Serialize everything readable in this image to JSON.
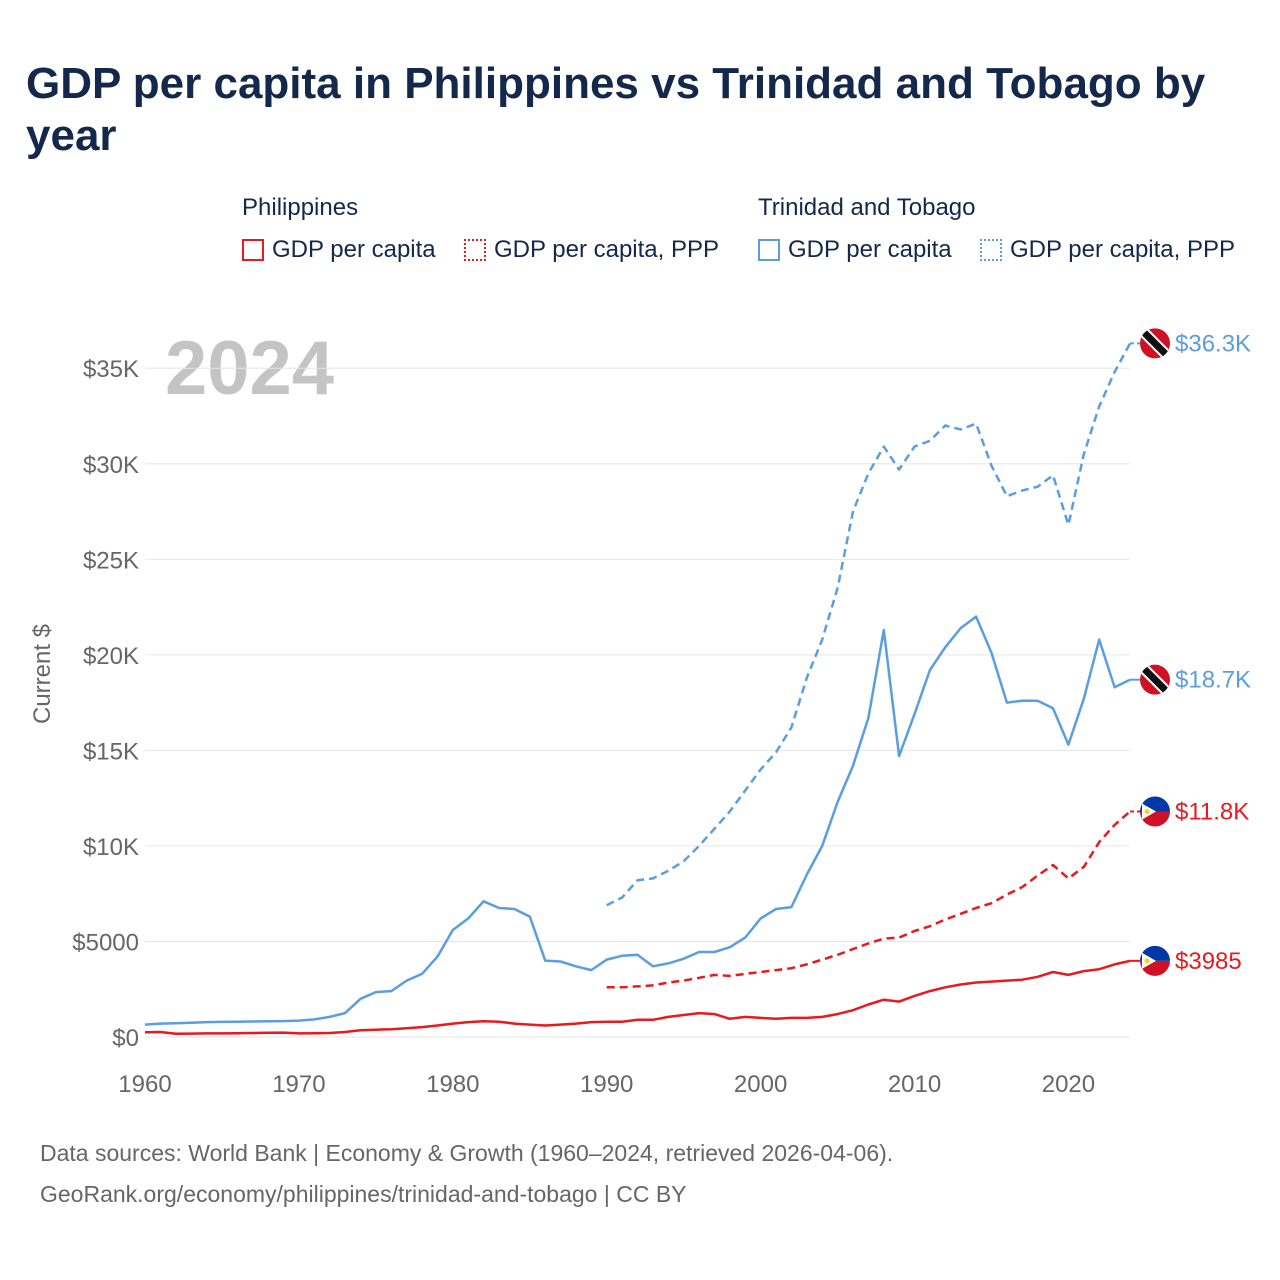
{
  "title": "GDP per capita in Philippines vs Trinidad and Tobago by year",
  "legend": {
    "groups": [
      {
        "name": "Philippines",
        "color": "#e8191f",
        "items": [
          "GDP per capita",
          "GDP per capita, PPP"
        ]
      },
      {
        "name": "Trinidad and Tobago",
        "color": "#5a9ee0",
        "items": [
          "GDP per capita",
          "GDP per capita, PPP"
        ]
      }
    ]
  },
  "year_watermark": "2024",
  "footer": {
    "line1": "Data sources: World Bank | Economy & Growth (1960–2024, retrieved 2026-04-06).",
    "line2": "GeoRank.org/economy/philippines/trinidad-and-tobago | CC BY"
  },
  "colors": {
    "philippines": "#e8191f",
    "trinidad": "#5a9ee0",
    "grid": "#e6e6e6",
    "axis_text": "#666666"
  },
  "chart_data": {
    "type": "line",
    "title": "GDP per capita in Philippines vs Trinidad and Tobago by year",
    "xlabel": "",
    "ylabel": "Current $",
    "xlim": [
      1960,
      2024
    ],
    "ylim": [
      0,
      37000
    ],
    "x_ticks": [
      1960,
      1970,
      1980,
      1990,
      2000,
      2010,
      2020
    ],
    "y_ticks": [
      0,
      5000,
      10000,
      15000,
      20000,
      25000,
      30000,
      35000
    ],
    "y_tick_labels": [
      "$0",
      "$5000",
      "$10K",
      "$15K",
      "$20K",
      "$25K",
      "$30K",
      "$35K"
    ],
    "series": [
      {
        "name": "Trinidad and Tobago GDP per capita, PPP",
        "country": "trinidad",
        "dash": true,
        "end_label": "$36.3K",
        "x": [
          1990,
          1991,
          1992,
          1993,
          1994,
          1995,
          1996,
          1997,
          1998,
          1999,
          2000,
          2001,
          2002,
          2003,
          2004,
          2005,
          2006,
          2007,
          2008,
          2009,
          2010,
          2011,
          2012,
          2013,
          2014,
          2015,
          2016,
          2017,
          2018,
          2019,
          2020,
          2021,
          2022,
          2023,
          2024
        ],
        "values": [
          6900,
          7300,
          8200,
          8300,
          8700,
          9200,
          10000,
          10900,
          11800,
          12900,
          14000,
          14900,
          16200,
          18800,
          20800,
          23500,
          27500,
          29500,
          30900,
          29700,
          30900,
          31200,
          32000,
          31800,
          32100,
          29900,
          28300,
          28600,
          28800,
          29400,
          26800,
          30500,
          33000,
          34800,
          36300
        ]
      },
      {
        "name": "Trinidad and Tobago GDP per capita",
        "country": "trinidad",
        "dash": false,
        "end_label": "$18.7K",
        "x": [
          1960,
          1961,
          1962,
          1963,
          1964,
          1965,
          1966,
          1967,
          1968,
          1969,
          1970,
          1971,
          1972,
          1973,
          1974,
          1975,
          1976,
          1977,
          1978,
          1979,
          1980,
          1981,
          1982,
          1983,
          1984,
          1985,
          1986,
          1987,
          1988,
          1989,
          1990,
          1991,
          1992,
          1993,
          1994,
          1995,
          1996,
          1997,
          1998,
          1999,
          2000,
          2001,
          2002,
          2003,
          2004,
          2005,
          2006,
          2007,
          2008,
          2009,
          2010,
          2011,
          2012,
          2013,
          2014,
          2015,
          2016,
          2017,
          2018,
          2019,
          2020,
          2021,
          2022,
          2023,
          2024
        ],
        "values": [
          650,
          700,
          720,
          750,
          780,
          790,
          800,
          810,
          820,
          830,
          860,
          920,
          1050,
          1250,
          2000,
          2350,
          2400,
          2950,
          3300,
          4200,
          5600,
          6200,
          7100,
          6750,
          6700,
          6300,
          4000,
          3950,
          3700,
          3500,
          4050,
          4250,
          4300,
          3700,
          3850,
          4100,
          4450,
          4450,
          4700,
          5200,
          6200,
          6700,
          6800,
          8500,
          10000,
          12300,
          14200,
          16700,
          21300,
          14700,
          16900,
          19200,
          20400,
          21400,
          22000,
          20100,
          17500,
          17600,
          17600,
          17200,
          15300,
          17700,
          20800,
          18300,
          18700
        ]
      },
      {
        "name": "Philippines GDP per capita, PPP",
        "country": "philippines",
        "dash": true,
        "end_label": "$11.8K",
        "x": [
          1990,
          1991,
          1992,
          1993,
          1994,
          1995,
          1996,
          1997,
          1998,
          1999,
          2000,
          2001,
          2002,
          2003,
          2004,
          2005,
          2006,
          2007,
          2008,
          2009,
          2010,
          2011,
          2012,
          2013,
          2014,
          2015,
          2016,
          2017,
          2018,
          2019,
          2020,
          2021,
          2022,
          2023,
          2024
        ],
        "values": [
          2600,
          2600,
          2650,
          2700,
          2850,
          2950,
          3100,
          3250,
          3200,
          3300,
          3400,
          3500,
          3600,
          3800,
          4050,
          4300,
          4600,
          4900,
          5150,
          5200,
          5550,
          5800,
          6150,
          6450,
          6750,
          7000,
          7450,
          7850,
          8450,
          9000,
          8300,
          8900,
          10200,
          11100,
          11800
        ]
      },
      {
        "name": "Philippines GDP per capita",
        "country": "philippines",
        "dash": false,
        "end_label": "$3985",
        "x": [
          1960,
          1961,
          1962,
          1963,
          1964,
          1965,
          1966,
          1967,
          1968,
          1969,
          1970,
          1971,
          1972,
          1973,
          1974,
          1975,
          1976,
          1977,
          1978,
          1979,
          1980,
          1981,
          1982,
          1983,
          1984,
          1985,
          1986,
          1987,
          1988,
          1989,
          1990,
          1991,
          1992,
          1993,
          1994,
          1995,
          1996,
          1997,
          1998,
          1999,
          2000,
          2001,
          2002,
          2003,
          2004,
          2005,
          2006,
          2007,
          2008,
          2009,
          2010,
          2011,
          2012,
          2013,
          2014,
          2015,
          2016,
          2017,
          2018,
          2019,
          2020,
          2021,
          2022,
          2023,
          2024
        ],
        "values": [
          250,
          260,
          170,
          180,
          190,
          190,
          200,
          210,
          220,
          230,
          190,
          200,
          210,
          260,
          350,
          380,
          410,
          460,
          520,
          600,
          700,
          780,
          820,
          800,
          700,
          650,
          600,
          650,
          700,
          780,
          800,
          800,
          900,
          900,
          1050,
          1150,
          1250,
          1200,
          950,
          1050,
          1000,
          950,
          1000,
          1000,
          1050,
          1200,
          1400,
          1700,
          1950,
          1850,
          2150,
          2400,
          2600,
          2750,
          2850,
          2900,
          2950,
          3000,
          3150,
          3400,
          3250,
          3450,
          3550,
          3800,
          3985
        ]
      }
    ]
  }
}
